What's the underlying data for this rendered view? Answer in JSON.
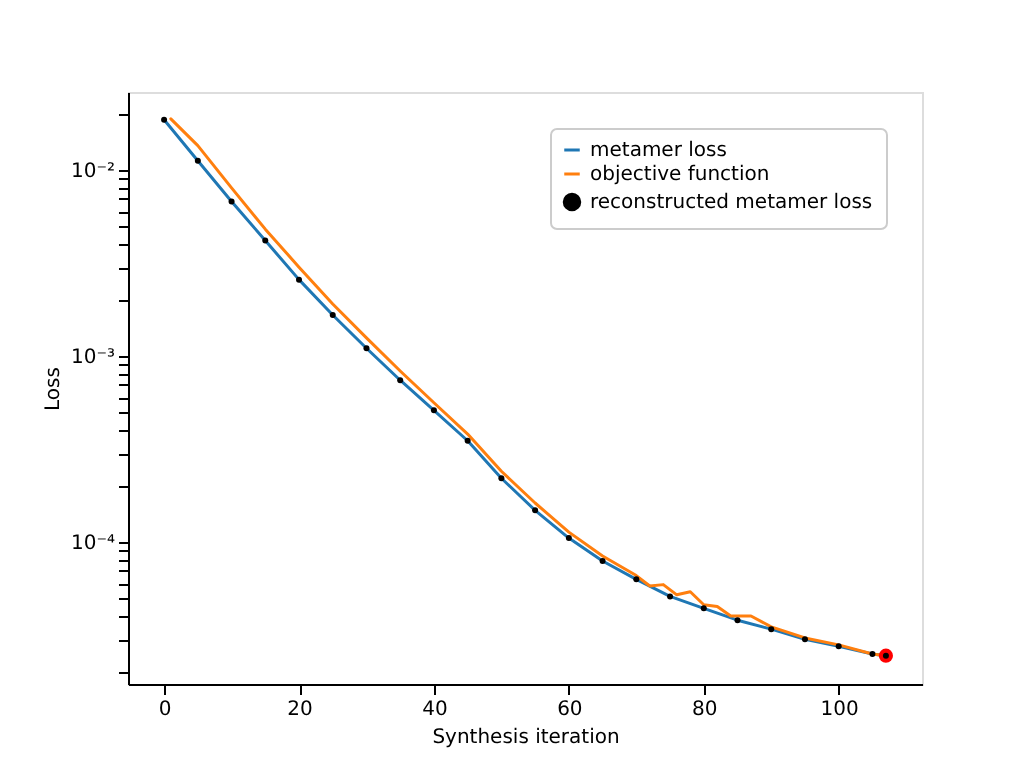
{
  "chart_data": {
    "type": "line",
    "xlabel": "Synthesis iteration",
    "ylabel": "Loss",
    "log": "y",
    "grid": false,
    "legend": "top right",
    "xlim": [
      -5.35,
      112.35
    ],
    "xticks": [
      0,
      20,
      40,
      60,
      80,
      100
    ],
    "ylim": [
      1.725e-05,
      0.0262
    ],
    "yticks": [
      {
        "value": 2e-05,
        "label": null
      },
      {
        "value": 3e-05,
        "label": null
      },
      {
        "value": 4e-05,
        "label": null
      },
      {
        "value": 5e-05,
        "label": null
      },
      {
        "value": 6e-05,
        "label": null
      },
      {
        "value": 7e-05,
        "label": null
      },
      {
        "value": 8e-05,
        "label": null
      },
      {
        "value": 9e-05,
        "label": null
      },
      {
        "value": 0.0001,
        "label": "10⁻⁴"
      },
      {
        "value": 0.0002,
        "label": null
      },
      {
        "value": 0.0003,
        "label": null
      },
      {
        "value": 0.0004,
        "label": null
      },
      {
        "value": 0.0005,
        "label": null
      },
      {
        "value": 0.0006,
        "label": null
      },
      {
        "value": 0.0007,
        "label": null
      },
      {
        "value": 0.0008,
        "label": null
      },
      {
        "value": 0.0009,
        "label": null
      },
      {
        "value": 0.001,
        "label": "10⁻³"
      },
      {
        "value": 0.002,
        "label": null
      },
      {
        "value": 0.003,
        "label": null
      },
      {
        "value": 0.004,
        "label": null
      },
      {
        "value": 0.005,
        "label": null
      },
      {
        "value": 0.006,
        "label": null
      },
      {
        "value": 0.007,
        "label": null
      },
      {
        "value": 0.008,
        "label": null
      },
      {
        "value": 0.009,
        "label": null
      },
      {
        "value": 0.01,
        "label": "10⁻²"
      },
      {
        "value": 0.02,
        "label": null
      }
    ],
    "series": [
      {
        "name": "metamer loss",
        "color": "#1f77b4",
        "marker": "none",
        "line_style": "solid",
        "x": [
          0,
          5,
          10,
          15,
          20,
          25,
          30,
          35,
          40,
          45,
          50,
          55,
          60,
          65,
          70,
          75,
          80,
          85,
          90,
          95,
          100,
          105,
          107
        ],
        "values": [
          0.0186,
          0.0112,
          0.00676,
          0.00417,
          0.00257,
          0.00166,
          0.0011,
          0.00074,
          0.00051,
          0.00035,
          0.00022,
          0.000148,
          0.000105,
          7.9e-05,
          6.3e-05,
          5.1e-05,
          4.4e-05,
          3.8e-05,
          3.4e-05,
          3e-05,
          2.75e-05,
          2.5e-05,
          2.45e-05
        ]
      },
      {
        "name": "objective function",
        "color": "#ff7f0e",
        "marker": "none",
        "line_style": "solid",
        "x": [
          1,
          5,
          10,
          15,
          20,
          25,
          30,
          35,
          40,
          45,
          50,
          55,
          60,
          65,
          70,
          72,
          74,
          76,
          78,
          80,
          82,
          84,
          87,
          90,
          95,
          100,
          105,
          107
        ],
        "values": [
          0.0188,
          0.0135,
          0.008,
          0.0048,
          0.003,
          0.0019,
          0.00125,
          0.00083,
          0.00056,
          0.00038,
          0.00024,
          0.000162,
          0.000113,
          8.4e-05,
          6.6e-05,
          5.8e-05,
          5.9e-05,
          5.2e-05,
          5.4e-05,
          4.6e-05,
          4.5e-05,
          4e-05,
          4e-05,
          3.5e-05,
          3.05e-05,
          2.8e-05,
          2.5e-05,
          2.45e-05
        ]
      },
      {
        "name": "reconstructed metamer loss",
        "type": "scatter",
        "color": "#000000",
        "marker": "circle",
        "x": [
          0,
          5,
          10,
          15,
          20,
          25,
          30,
          35,
          40,
          45,
          50,
          55,
          60,
          65,
          70,
          75,
          80,
          85,
          90,
          95,
          100,
          105,
          107
        ],
        "values": [
          0.0186,
          0.0112,
          0.00676,
          0.00417,
          0.00257,
          0.00166,
          0.0011,
          0.00074,
          0.00051,
          0.00035,
          0.00022,
          0.000148,
          0.000105,
          7.9e-05,
          6.3e-05,
          5.1e-05,
          4.4e-05,
          3.8e-05,
          3.4e-05,
          3e-05,
          2.75e-05,
          2.5e-05,
          2.45e-05
        ]
      },
      {
        "type": "scatter",
        "color": "#ff0000",
        "marker": "circle",
        "x": [
          107
        ],
        "values": [
          2.45e-05
        ]
      }
    ]
  }
}
